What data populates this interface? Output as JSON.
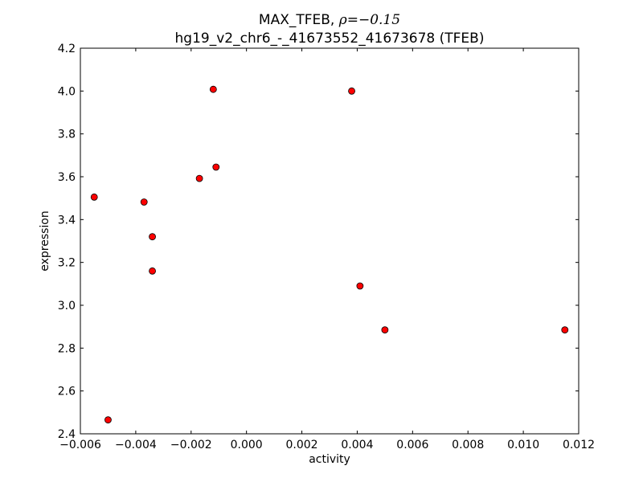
{
  "chart_data": {
    "type": "scatter",
    "title_prefix": "MAX_TFEB, ",
    "title_math": "ρ=−0.15",
    "subtitle": "hg19_v2_chr6_-_41673552_41673678 (TFEB)",
    "xlabel": "activity",
    "ylabel": "expression",
    "xlim": [
      -0.006,
      0.012
    ],
    "ylim": [
      2.4,
      4.2
    ],
    "x_ticks": [
      -0.006,
      -0.004,
      -0.002,
      0.0,
      0.002,
      0.004,
      0.006,
      0.008,
      0.01,
      0.012
    ],
    "x_tick_labels": [
      "−0.006",
      "−0.004",
      "−0.002",
      "0.000",
      "0.002",
      "0.004",
      "0.006",
      "0.008",
      "0.010",
      "0.012"
    ],
    "y_ticks": [
      2.4,
      2.6,
      2.8,
      3.0,
      3.2,
      3.4,
      3.6,
      3.8,
      4.0,
      4.2
    ],
    "y_tick_labels": [
      "2.4",
      "2.6",
      "2.8",
      "3.0",
      "3.2",
      "3.4",
      "3.6",
      "3.8",
      "4.0",
      "4.2"
    ],
    "grid": false,
    "marker_color": "#ff0000",
    "marker_edge_color": "#000000",
    "points": [
      {
        "x": -0.0055,
        "y": 3.505
      },
      {
        "x": -0.005,
        "y": 2.465
      },
      {
        "x": -0.0037,
        "y": 3.482
      },
      {
        "x": -0.0034,
        "y": 3.32
      },
      {
        "x": -0.0034,
        "y": 3.16
      },
      {
        "x": -0.0017,
        "y": 3.592
      },
      {
        "x": -0.0012,
        "y": 4.008
      },
      {
        "x": -0.0011,
        "y": 3.645
      },
      {
        "x": 0.0038,
        "y": 4.0
      },
      {
        "x": 0.0041,
        "y": 3.09
      },
      {
        "x": 0.005,
        "y": 2.885
      },
      {
        "x": 0.0115,
        "y": 2.885
      }
    ]
  }
}
